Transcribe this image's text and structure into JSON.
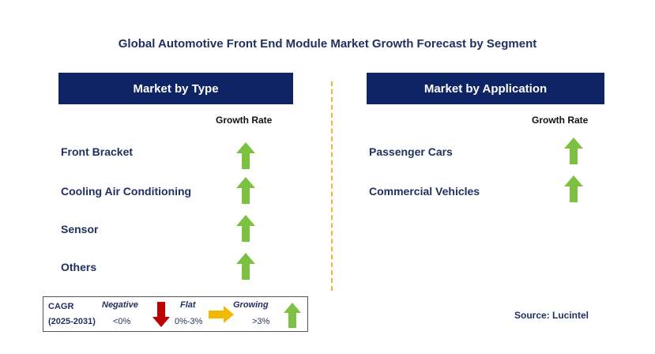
{
  "title": "Global Automotive Front End Module Market Growth Forecast by Segment",
  "left_panel": {
    "header": "Market by Type",
    "column_header": "Growth Rate",
    "rows": [
      {
        "label": "Front Bracket",
        "trend": "growing"
      },
      {
        "label": "Cooling Air Conditioning",
        "trend": "growing"
      },
      {
        "label": "Sensor",
        "trend": "growing"
      },
      {
        "label": "Others",
        "trend": "growing"
      }
    ]
  },
  "right_panel": {
    "header": "Market by Application",
    "column_header": "Growth Rate",
    "rows": [
      {
        "label": "Passenger Cars",
        "trend": "growing"
      },
      {
        "label": "Commercial Vehicles",
        "trend": "growing"
      }
    ]
  },
  "legend": {
    "cagr_label": "CAGR",
    "period": "(2025-2031)",
    "negative_label": "Negative",
    "negative_range": "<0%",
    "flat_label": "Flat",
    "flat_range": "0%-3%",
    "growing_label": "Growing",
    "growing_range": ">3%"
  },
  "source": "Source: Lucintel",
  "colors": {
    "header_bg": "#0e2465",
    "title_text": "#1f2f5e",
    "growing_arrow": "#7dc142",
    "negative_arrow": "#c00000",
    "flat_arrow": "#f5b800",
    "divider": "#f2b233"
  },
  "icons": {
    "growing": "up-arrow-icon",
    "negative": "down-arrow-icon",
    "flat": "right-arrow-icon"
  }
}
